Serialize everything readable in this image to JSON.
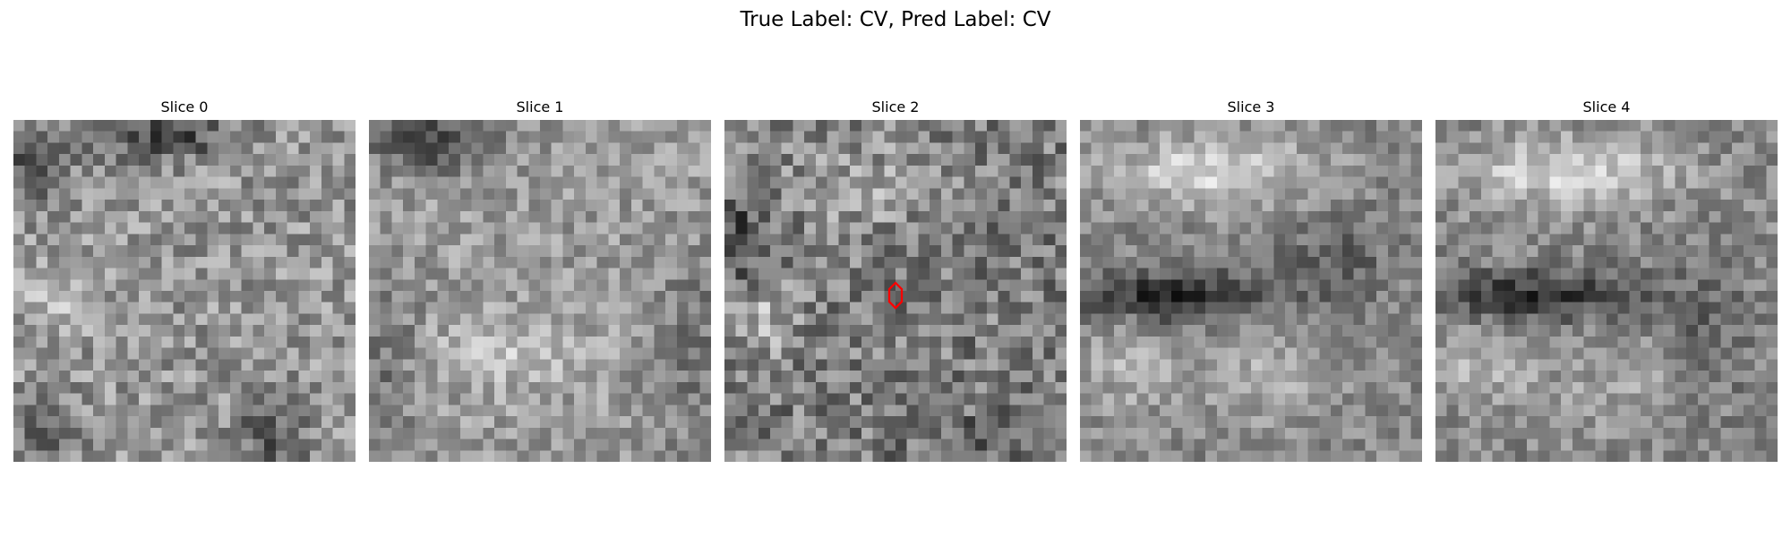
{
  "figure": {
    "title": "True Label: CV, Pred Label: CV",
    "colormap": "gray",
    "marker_color": "#ff0000"
  },
  "slices": [
    {
      "label": "Slice 0"
    },
    {
      "label": "Slice 1"
    },
    {
      "label": "Slice 2"
    },
    {
      "label": "Slice 3"
    },
    {
      "label": "Slice 4"
    }
  ]
}
